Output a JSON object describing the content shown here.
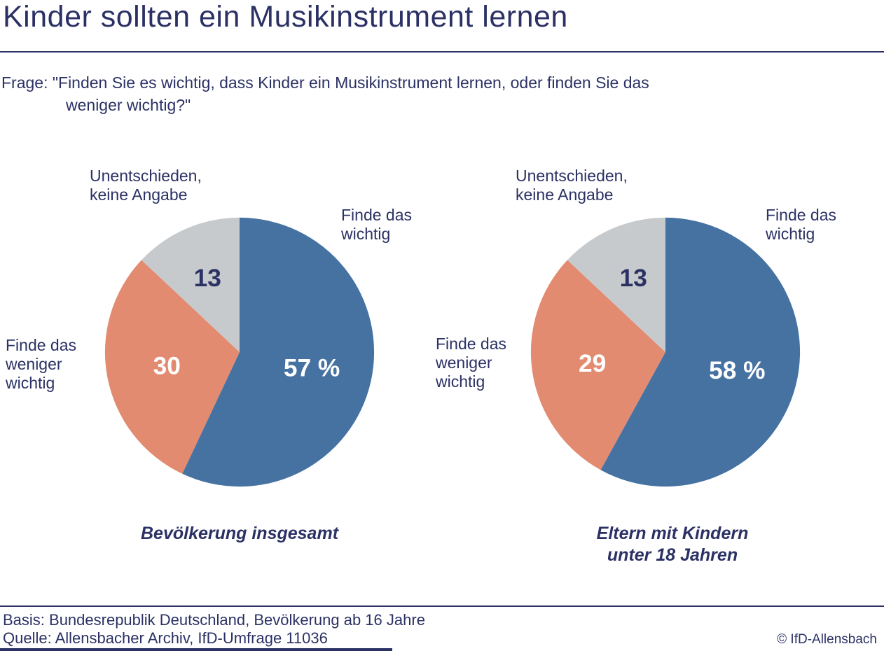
{
  "page": {
    "title": "Kinder sollten ein Musikinstrument lernen",
    "question_line1": "Frage: \"Finden Sie es wichtig, dass Kinder ein Musikinstrument lernen, oder finden Sie das",
    "question_line2": "weniger wichtig?\"",
    "footer": {
      "basis": "Basis: Bundesrepublik Deutschland, Bevölkerung ab 16 Jahre",
      "quelle": "Quelle: Allensbacher Archiv, IfD-Umfrage 11036",
      "copyright": "© IfD-Allensbach"
    },
    "colors": {
      "navy_text": "#2b3164",
      "pie_blue": "#4672a2",
      "pie_salmon": "#e28b70",
      "pie_gray": "#c7cacc",
      "value_white": "#ffffff"
    }
  },
  "chart_data": [
    {
      "type": "pie",
      "caption": "Bevölkerung insgesamt",
      "start_angle_deg": 0,
      "direction": "clockwise",
      "legend_position": "outside-labels",
      "annotations": {
        "unentschieden": "Unentschieden,\nkeine Angabe",
        "wichtig": "Finde das\nwichtig",
        "weniger": "Finde das\nweniger\nwichtig"
      },
      "slices": [
        {
          "id": "wichtig",
          "label": "Finde das wichtig",
          "value": 57,
          "display": "57 %",
          "color": "#4672a2",
          "text_color": "#ffffff",
          "label_radius_frac": 0.55
        },
        {
          "id": "weniger-wichtig",
          "label": "Finde das weniger wichtig",
          "value": 30,
          "display": "30",
          "color": "#e28b70",
          "text_color": "#ffffff",
          "label_radius_frac": 0.55
        },
        {
          "id": "unentschieden",
          "label": "Unentschieden, keine Angabe",
          "value": 13,
          "display": "13",
          "color": "#c7cacc",
          "text_color": "#2b3164",
          "label_radius_frac": 0.6
        }
      ]
    },
    {
      "type": "pie",
      "caption": "Eltern mit Kindern\nunter 18 Jahren",
      "start_angle_deg": 0,
      "direction": "clockwise",
      "legend_position": "outside-labels",
      "annotations": {
        "unentschieden": "Unentschieden,\nkeine Angabe",
        "wichtig": "Finde das\nwichtig",
        "weniger": "Finde das\nweniger\nwichtig"
      },
      "slices": [
        {
          "id": "wichtig",
          "label": "Finde das wichtig",
          "value": 58,
          "display": "58 %",
          "color": "#4672a2",
          "text_color": "#ffffff",
          "label_radius_frac": 0.55
        },
        {
          "id": "weniger-wichtig",
          "label": "Finde das weniger wichtig",
          "value": 29,
          "display": "29",
          "color": "#e28b70",
          "text_color": "#ffffff",
          "label_radius_frac": 0.55
        },
        {
          "id": "unentschieden",
          "label": "Unentschieden, keine Angabe",
          "value": 13,
          "display": "13",
          "color": "#c7cacc",
          "text_color": "#2b3164",
          "label_radius_frac": 0.6
        }
      ]
    }
  ]
}
